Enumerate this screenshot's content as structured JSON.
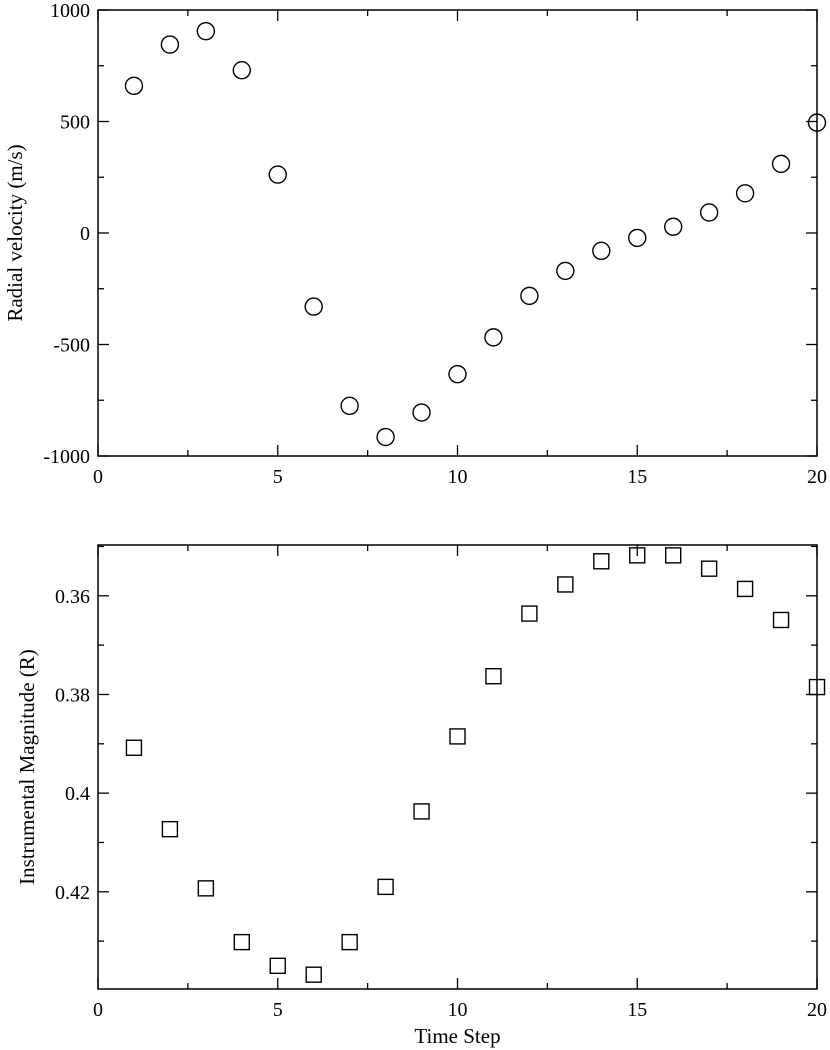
{
  "chart_data": [
    {
      "type": "scatter",
      "marker": "circle",
      "xlabel": "",
      "ylabel": "Radial velocity (m/s)",
      "xlim": [
        0,
        20
      ],
      "ylim": [
        -1000,
        1000
      ],
      "x_ticks": [
        0,
        5,
        10,
        15,
        20
      ],
      "y_ticks": [
        -1000,
        -500,
        0,
        500,
        1000
      ],
      "grid": false,
      "x": [
        1,
        2,
        3,
        4,
        5,
        6,
        7,
        8,
        9,
        10,
        11,
        12,
        13,
        14,
        15,
        16,
        17,
        18,
        19,
        20
      ],
      "y": [
        660,
        845,
        905,
        730,
        262,
        -330,
        -775,
        -915,
        -805,
        -633,
        -468,
        -282,
        -170,
        -80,
        -22,
        28,
        92,
        178,
        310,
        495
      ]
    },
    {
      "type": "scatter",
      "marker": "square",
      "xlabel": "Time Step",
      "ylabel": "Instrumental Magnitude (R)",
      "xlim": [
        0,
        20
      ],
      "ylim": [
        0.4397,
        0.3497
      ],
      "y_inverted": true,
      "x_ticks": [
        0,
        5,
        10,
        15,
        20
      ],
      "y_ticks": [
        0.36,
        0.38,
        0.4,
        0.42
      ],
      "y_tick_labels": [
        "0.36",
        "0.38",
        "0.4",
        "0.42"
      ],
      "grid": false,
      "x": [
        1,
        2,
        3,
        4,
        5,
        6,
        7,
        8,
        9,
        10,
        11,
        12,
        13,
        14,
        15,
        16,
        17,
        18,
        19,
        20
      ],
      "y": [
        0.3908,
        0.4073,
        0.4193,
        0.4302,
        0.435,
        0.4368,
        0.4302,
        0.419,
        0.4037,
        0.3885,
        0.3763,
        0.3636,
        0.3577,
        0.353,
        0.3518,
        0.3518,
        0.3545,
        0.3586,
        0.3649,
        0.3785
      ]
    }
  ]
}
